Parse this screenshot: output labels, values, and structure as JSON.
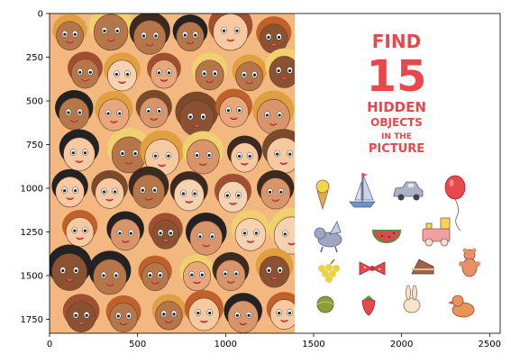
{
  "plot": {
    "x_ticks": [
      "0",
      "500",
      "1000",
      "1500",
      "2000",
      "2500"
    ],
    "y_ticks": [
      "0",
      "250",
      "500",
      "750",
      "1000",
      "1250",
      "1500",
      "1750"
    ]
  },
  "puzzle": {
    "find": "FIND",
    "count": "15",
    "hidden": "HIDDEN",
    "objects": "OBJECTS",
    "in_the": "IN THE",
    "picture": "PICTURE"
  },
  "colors": {
    "title_red": "#e8474c",
    "crowd_bg": "#f2b880"
  },
  "hidden_objects": [
    {
      "name": "ice-cream-cone-icon"
    },
    {
      "name": "sailboat-icon"
    },
    {
      "name": "toy-car-icon"
    },
    {
      "name": "balloon-icon"
    },
    {
      "name": "winged-cat-icon"
    },
    {
      "name": "watermelon-slice-icon"
    },
    {
      "name": "toy-train-icon"
    },
    {
      "name": "grapes-icon"
    },
    {
      "name": "bow-tie-icon"
    },
    {
      "name": "cake-slice-icon"
    },
    {
      "name": "teddy-bear-icon"
    },
    {
      "name": "ball-icon"
    },
    {
      "name": "strawberry-icon"
    },
    {
      "name": "rabbit-icon"
    },
    {
      "name": "duck-icon"
    }
  ]
}
